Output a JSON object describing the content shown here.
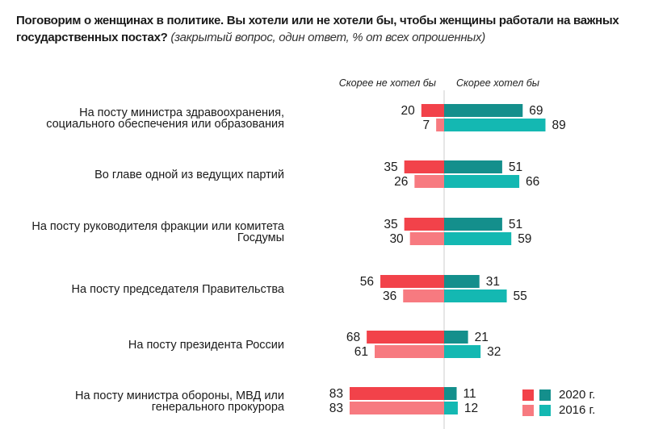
{
  "title": {
    "question": "Поговорим о женщинах в политике. Вы хотели или не хотели бы, чтобы женщины работали на важных государственных постах?",
    "note": "(закрытый вопрос, один ответ, % от всех опрошенных)"
  },
  "colors": {
    "neg_2020": "#f2424a",
    "neg_2016": "#f77a80",
    "pos_2020": "#148f8c",
    "pos_2016": "#14b8b2",
    "axis": "#cccccc"
  },
  "chart_data": {
    "type": "bar",
    "orientation": "horizontal-diverging",
    "title": "Поговорим о женщинах в политике. Вы хотели или не хотели бы, чтобы женщины работали на важных государственных постах? (закрытый вопрос, один ответ, % от всех опрошенных)",
    "column_headers": {
      "negative": "Скорее не хотел бы",
      "positive": "Скорее хотел бы"
    },
    "categories": [
      [
        "На посту министра здравоохранения,",
        "социального обеспечения или образования"
      ],
      [
        "Во главе одной из ведущих партий"
      ],
      [
        "На посту руководителя фракции или комитета",
        "Госдумы"
      ],
      [
        "На посту председателя Правительства"
      ],
      [
        "На посту президента России"
      ],
      [
        "На посту министра обороны, МВД или",
        "генерального прокурора"
      ]
    ],
    "series": [
      {
        "name": "Скорее не хотел бы — 2020 г.",
        "side": "negative",
        "year": "2020",
        "values": [
          20,
          35,
          35,
          56,
          68,
          83
        ]
      },
      {
        "name": "Скорее не хотел бы — 2016 г.",
        "side": "negative",
        "year": "2016",
        "values": [
          7,
          26,
          30,
          36,
          61,
          83
        ]
      },
      {
        "name": "Скорее хотел бы — 2020 г.",
        "side": "positive",
        "year": "2020",
        "values": [
          69,
          51,
          51,
          31,
          21,
          11
        ]
      },
      {
        "name": "Скорее хотел бы — 2016 г.",
        "side": "positive",
        "year": "2016",
        "values": [
          89,
          66,
          59,
          55,
          32,
          12
        ]
      }
    ],
    "unit": "%",
    "xlim": [
      -100,
      100
    ],
    "grid": false,
    "legend": {
      "placement": "bottom-right",
      "entries": [
        {
          "label": "2020 г.",
          "year": "2020"
        },
        {
          "label": "2016 г.",
          "year": "2016"
        }
      ]
    }
  }
}
